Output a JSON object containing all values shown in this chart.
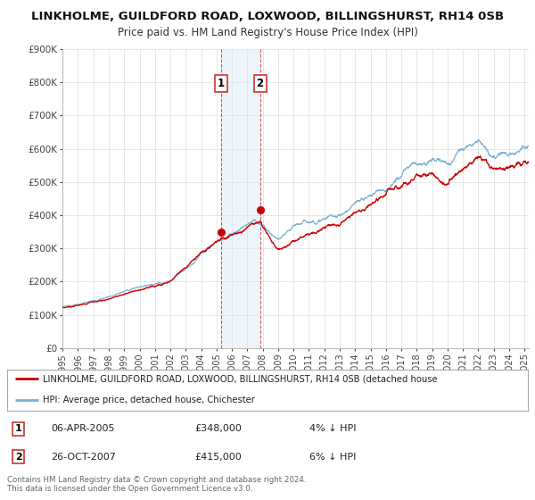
{
  "title": "LINKHOLME, GUILDFORD ROAD, LOXWOOD, BILLINGSHURST, RH14 0SB",
  "subtitle": "Price paid vs. HM Land Registry's House Price Index (HPI)",
  "ylim": [
    0,
    900000
  ],
  "xlim_start": 1995.0,
  "xlim_end": 2025.3,
  "yticks": [
    0,
    100000,
    200000,
    300000,
    400000,
    500000,
    600000,
    700000,
    800000,
    900000
  ],
  "ytick_labels": [
    "£0",
    "£100K",
    "£200K",
    "£300K",
    "£400K",
    "£500K",
    "£600K",
    "£700K",
    "£800K",
    "£900K"
  ],
  "xticks": [
    1995,
    1996,
    1997,
    1998,
    1999,
    2000,
    2001,
    2002,
    2003,
    2004,
    2005,
    2006,
    2007,
    2008,
    2009,
    2010,
    2011,
    2012,
    2013,
    2014,
    2015,
    2016,
    2017,
    2018,
    2019,
    2020,
    2021,
    2022,
    2023,
    2024,
    2025
  ],
  "sale1_x": 2005.27,
  "sale1_y": 348000,
  "sale2_x": 2007.82,
  "sale2_y": 415000,
  "sale1_date": "06-APR-2005",
  "sale1_price": "£348,000",
  "sale1_hpi": "4% ↓ HPI",
  "sale2_date": "26-OCT-2007",
  "sale2_price": "£415,000",
  "sale2_hpi": "6% ↓ HPI",
  "legend_line1": "LINKHOLME, GUILDFORD ROAD, LOXWOOD, BILLINGSHURST, RH14 0SB (detached house",
  "legend_line2": "HPI: Average price, detached house, Chichester",
  "footer1": "Contains HM Land Registry data © Crown copyright and database right 2024.",
  "footer2": "This data is licensed under the Open Government Licence v3.0.",
  "line_color_red": "#cc0000",
  "line_color_blue": "#7aafd4",
  "dot_color": "#cc0000",
  "shade_color": "#d8eaf7",
  "grid_color": "#dddddd",
  "background_color": "#ffffff"
}
